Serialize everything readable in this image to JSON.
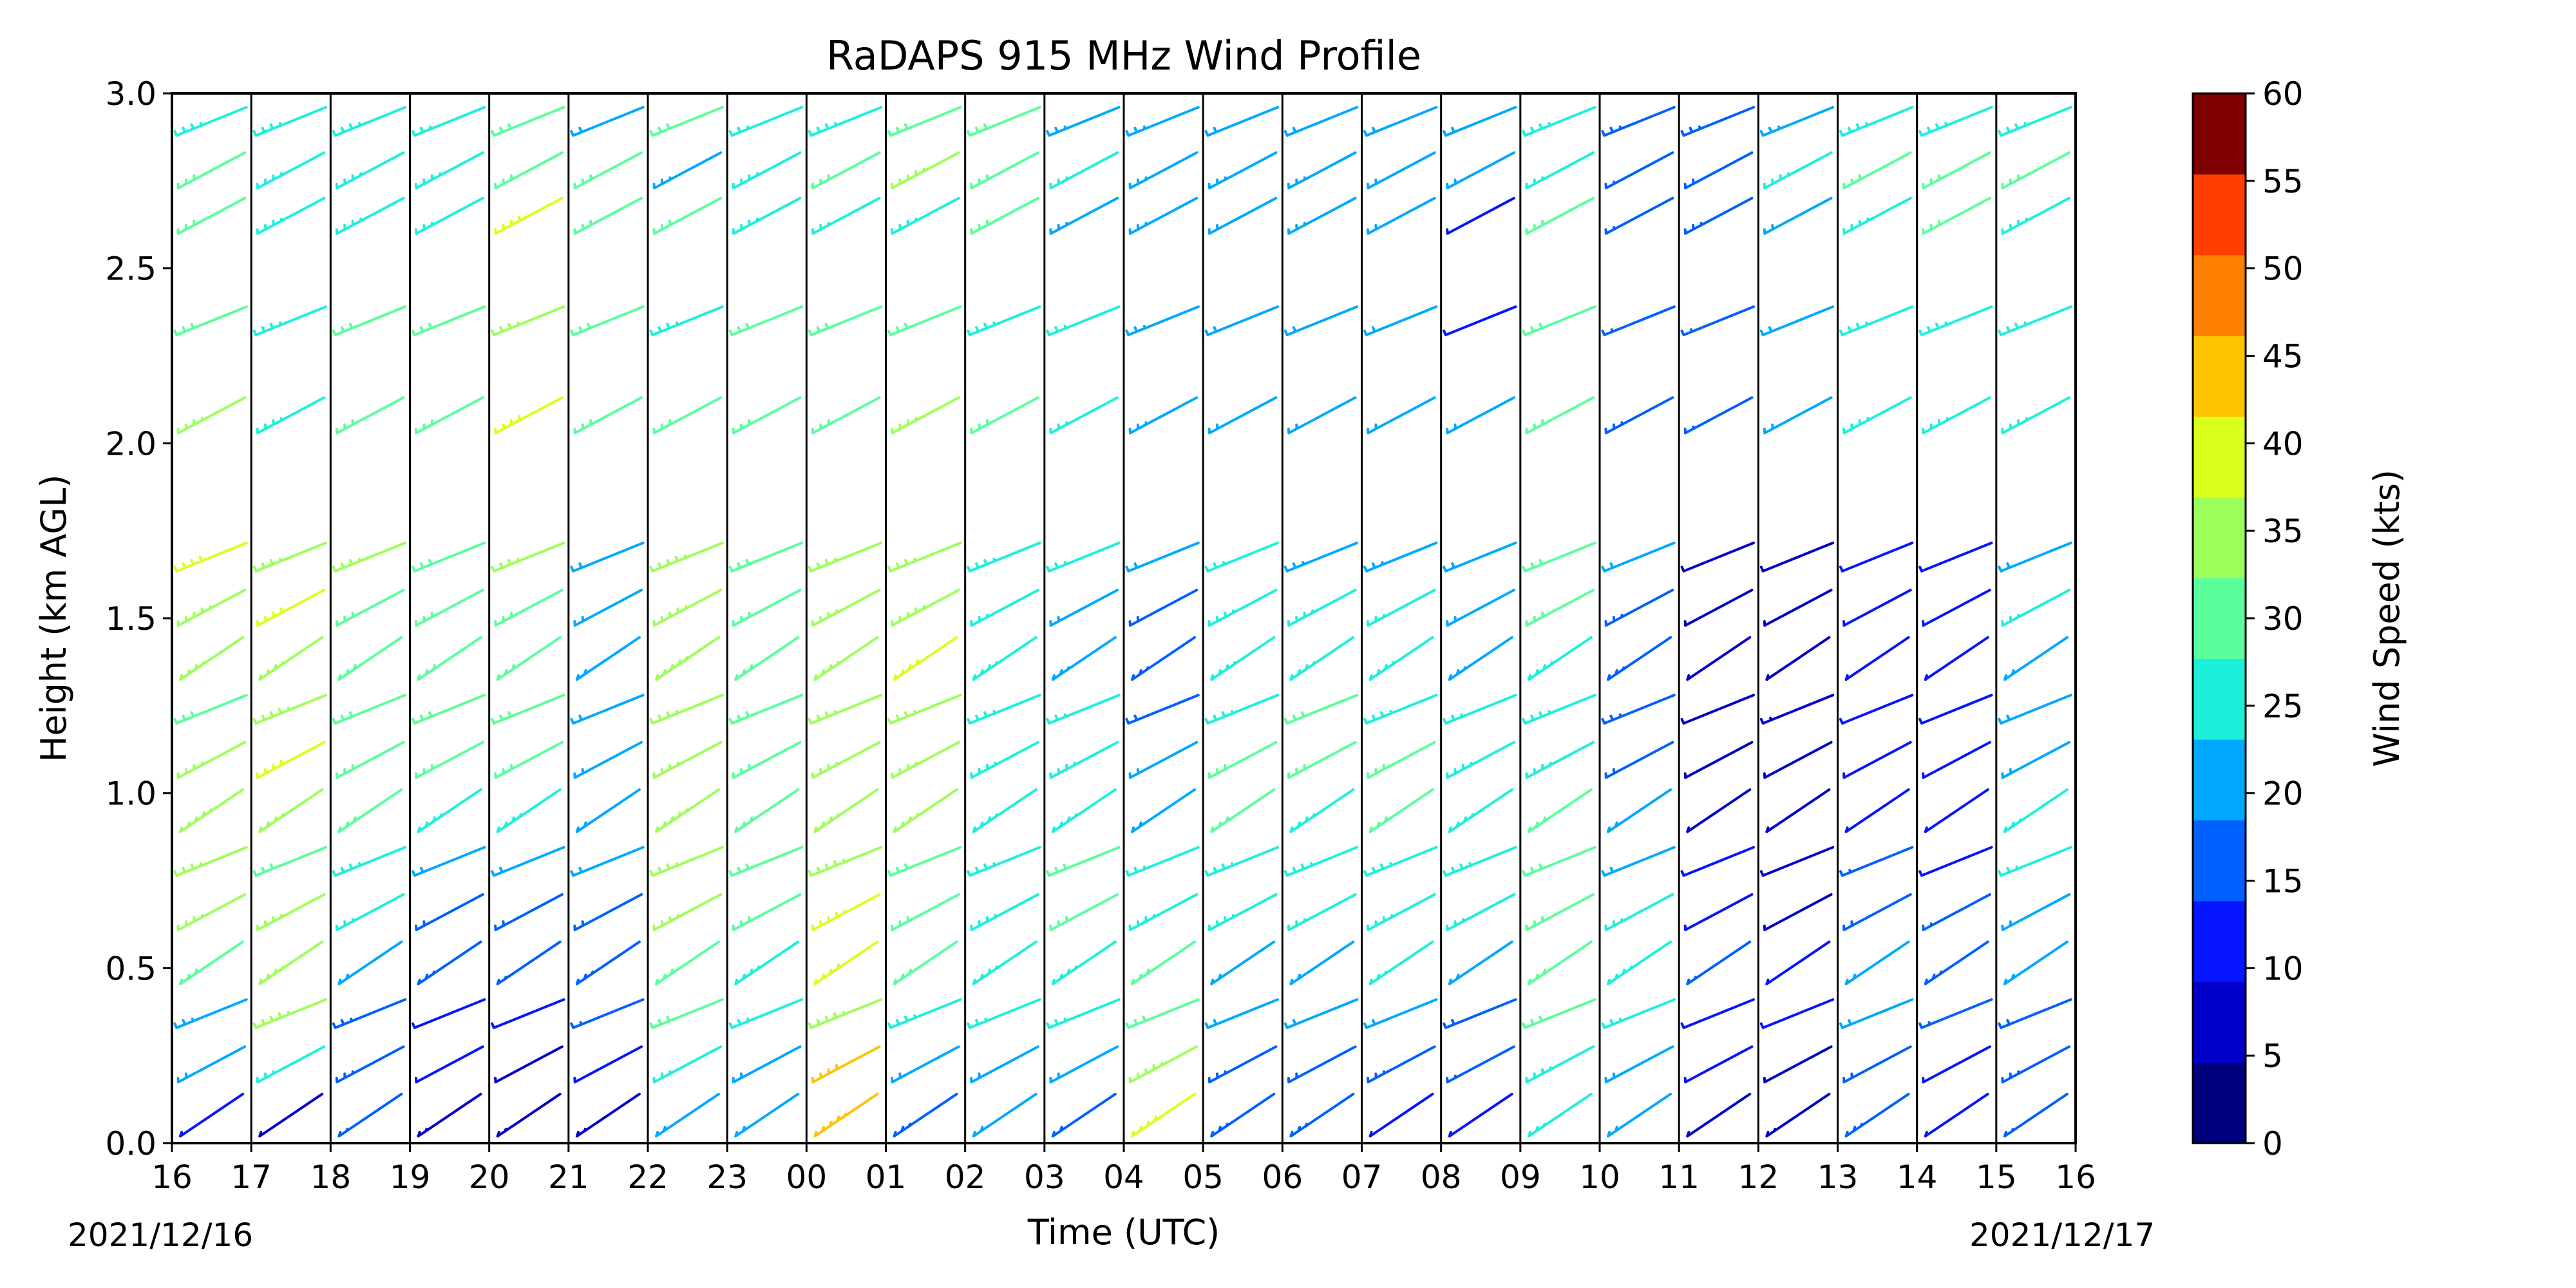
{
  "chart_data": {
    "type": "wind-barb-profile",
    "title": "RaDAPS 915 MHz Wind Profile",
    "xlabel": "Time (UTC)",
    "ylabel": "Height (km AGL)",
    "ylim": [
      0,
      3.0
    ],
    "y_ticks": [
      0.0,
      0.5,
      1.0,
      1.5,
      2.0,
      2.5,
      3.0
    ],
    "y_tick_labels": [
      "0.0",
      "0.5",
      "1.0",
      "1.5",
      "2.0",
      "2.5",
      "3.0"
    ],
    "x_tick_labels": [
      "16",
      "17",
      "18",
      "19",
      "20",
      "21",
      "22",
      "23",
      "00",
      "01",
      "02",
      "03",
      "04",
      "05",
      "06",
      "07",
      "08",
      "09",
      "10",
      "11",
      "12",
      "13",
      "14",
      "15",
      "16"
    ],
    "start_date_label": "2021/12/16",
    "end_date_label": "2021/12/17",
    "grid": "vertical lines at each hour",
    "colorbar": {
      "label": "Wind Speed (kts)",
      "ticks": [
        0,
        5,
        10,
        15,
        20,
        25,
        30,
        35,
        40,
        45,
        50,
        55,
        60
      ],
      "tick_labels": [
        "0",
        "5",
        "10",
        "15",
        "20",
        "25",
        "30",
        "35",
        "40",
        "45",
        "50",
        "55",
        "60"
      ],
      "colors": [
        "#00007f",
        "#0000ca",
        "#0515ff",
        "#0060ff",
        "#00a8ff",
        "#1cf0db",
        "#5aff9c",
        "#9cff5a",
        "#dbff1c",
        "#ffc400",
        "#ff7f00",
        "#ff3e00",
        "#7f0000"
      ],
      "range": [
        0,
        60
      ]
    },
    "series": [
      {
        "hour_offset": 0,
        "speeds_low": [
          12,
          20,
          23,
          32,
          33,
          34,
          35,
          33,
          32,
          34,
          36,
          38
        ],
        "speeds_high": [
          33,
          30,
          28,
          26,
          28
        ]
      },
      {
        "hour_offset": 1,
        "speeds_low": [
          8,
          24,
          36,
          34,
          33,
          32,
          33,
          38,
          35,
          34,
          38,
          34
        ],
        "speeds_high": [
          25,
          27,
          25,
          25,
          27
        ]
      },
      {
        "hour_offset": 2,
        "speeds_low": [
          14,
          15,
          17,
          20,
          24,
          27,
          30,
          31,
          30,
          32,
          32,
          33
        ],
        "speeds_high": [
          28,
          28,
          25,
          26,
          27
        ]
      },
      {
        "hour_offset": 3,
        "speeds_low": [
          6,
          10,
          12,
          15,
          18,
          22,
          26,
          28,
          28,
          30,
          30,
          29
        ],
        "speeds_high": [
          29,
          28,
          24,
          24,
          27
        ]
      },
      {
        "hour_offset": 4,
        "speeds_low": [
          5,
          9,
          12,
          14,
          18,
          22,
          25,
          28,
          30,
          31,
          32,
          33
        ],
        "speeds_high": [
          38,
          34,
          40,
          31,
          31
        ]
      },
      {
        "hour_offset": 5,
        "speeds_low": [
          6,
          10,
          14,
          16,
          18,
          20,
          22,
          22,
          22,
          21,
          22,
          22
        ],
        "speeds_high": [
          30,
          30,
          30,
          22,
          30
        ]
      },
      {
        "hour_offset": 6,
        "speeds_low": [
          22,
          24,
          28,
          31,
          33,
          34,
          35,
          34,
          34,
          35,
          36,
          35
        ],
        "speeds_high": [
          30,
          27,
          29,
          28,
          23
        ]
      },
      {
        "hour_offset": 7,
        "speeds_low": [
          20,
          22,
          24,
          26,
          28,
          30,
          30,
          31,
          31,
          32,
          31,
          31
        ],
        "speeds_high": [
          28,
          28,
          25,
          24,
          27
        ]
      },
      {
        "hour_offset": 8,
        "speeds_low": [
          44,
          42,
          36,
          38,
          37,
          36,
          34,
          34,
          33,
          33,
          34,
          33
        ],
        "speeds_high": [
          30,
          30,
          24,
          25,
          28
        ]
      },
      {
        "hour_offset": 9,
        "speeds_low": [
          15,
          22,
          26,
          28,
          30,
          32,
          33,
          34,
          34,
          38,
          35,
          34
        ],
        "speeds_high": [
          34,
          28,
          27,
          30,
          36
        ]
      },
      {
        "hour_offset": 10,
        "speeds_low": [
          20,
          22,
          24,
          26,
          26,
          27,
          26,
          25,
          25,
          25,
          24,
          25
        ],
        "speeds_high": [
          28,
          27,
          28,
          28,
          28
        ]
      },
      {
        "hour_offset": 11,
        "speeds_low": [
          18,
          20,
          24,
          26,
          28,
          28,
          26,
          25,
          24,
          23,
          22,
          24
        ],
        "speeds_high": [
          24,
          24,
          23,
          23,
          24
        ]
      },
      {
        "hour_offset": 12,
        "speeds_low": [
          38,
          36,
          32,
          28,
          26,
          24,
          22,
          20,
          18,
          17,
          18,
          20
        ],
        "speeds_high": [
          23,
          23,
          23,
          23,
          23
        ]
      },
      {
        "hour_offset": 13,
        "speeds_low": [
          15,
          17,
          20,
          22,
          25,
          26,
          28,
          28,
          27,
          26,
          25,
          24
        ],
        "speeds_high": [
          22,
          22,
          22,
          22,
          23
        ]
      },
      {
        "hour_offset": 14,
        "speeds_low": [
          16,
          18,
          20,
          22,
          24,
          26,
          27,
          28,
          28,
          26,
          25,
          23
        ],
        "speeds_high": [
          22,
          22,
          23,
          22,
          23
        ]
      },
      {
        "hour_offset": 15,
        "speeds_low": [
          12,
          16,
          20,
          24,
          26,
          27,
          28,
          28,
          27,
          26,
          24,
          23
        ],
        "speeds_high": [
          22,
          22,
          22,
          22,
          22
        ]
      },
      {
        "hour_offset": 16,
        "speeds_low": [
          10,
          14,
          18,
          22,
          24,
          26,
          26,
          25,
          24,
          23,
          22,
          21
        ],
        "speeds_high": [
          22,
          10,
          12,
          22,
          22
        ]
      },
      {
        "hour_offset": 17,
        "speeds_low": [
          24,
          26,
          28,
          30,
          32,
          30,
          28,
          26,
          25,
          26,
          28,
          32
        ],
        "speeds_high": [
          32,
          30,
          30,
          26,
          24
        ]
      },
      {
        "hour_offset": 18,
        "speeds_low": [
          20,
          22,
          24,
          25,
          24,
          22,
          20,
          18,
          16,
          15,
          15,
          20
        ],
        "speeds_high": [
          15,
          14,
          14,
          15,
          14
        ]
      },
      {
        "hour_offset": 19,
        "speeds_low": [
          8,
          10,
          12,
          14,
          12,
          10,
          9,
          8,
          8,
          8,
          9,
          8
        ],
        "speeds_high": [
          14,
          14,
          15,
          17,
          18
        ]
      },
      {
        "hour_offset": 20,
        "speeds_low": [
          6,
          8,
          10,
          10,
          9,
          8,
          8,
          8,
          7,
          8,
          8,
          8
        ],
        "speeds_high": [
          20,
          21,
          22,
          23,
          25
        ]
      },
      {
        "hour_offset": 21,
        "speeds_low": [
          16,
          18,
          20,
          22,
          18,
          14,
          12,
          10,
          10,
          10,
          10,
          10
        ],
        "speeds_high": [
          25,
          25,
          25,
          27,
          28
        ]
      },
      {
        "hour_offset": 22,
        "speeds_low": [
          10,
          12,
          14,
          16,
          14,
          12,
          10,
          10,
          11,
          12,
          12,
          12
        ],
        "speeds_high": [
          25,
          25,
          28,
          26,
          28
        ]
      },
      {
        "hour_offset": 23,
        "speeds_low": [
          14,
          16,
          18,
          20,
          22,
          24,
          24,
          22,
          20,
          22,
          24,
          22
        ],
        "speeds_high": [
          25,
          25,
          27,
          27,
          28
        ]
      }
    ]
  }
}
